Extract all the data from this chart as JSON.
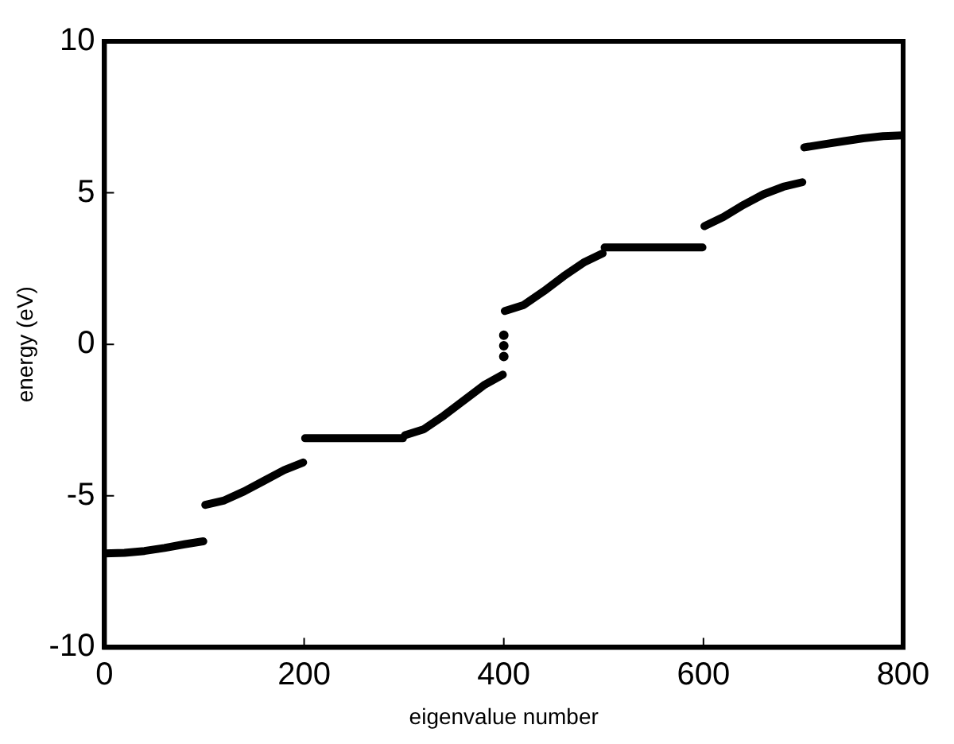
{
  "chart_data": {
    "type": "line",
    "xlabel": "eigenvalue number",
    "ylabel": "energy (eV)",
    "xlim": [
      0,
      800
    ],
    "xticks": [
      0,
      200,
      400,
      600,
      800
    ],
    "ylim": [
      -10,
      10
    ],
    "yticks": [
      -10,
      -5,
      0,
      5,
      10
    ],
    "grid": false,
    "legend": false,
    "series": [
      {
        "type": "line",
        "color": "#000000",
        "marker": "none",
        "x": [
          0,
          20,
          40,
          60,
          80,
          99,
          100,
          101,
          120,
          140,
          160,
          180,
          199,
          200,
          201,
          250,
          299,
          300,
          301,
          320,
          340,
          360,
          380,
          399,
          400,
          401,
          420,
          440,
          460,
          480,
          499,
          500,
          501,
          550,
          599,
          600,
          601,
          620,
          640,
          660,
          680,
          699,
          700,
          701,
          720,
          740,
          760,
          780,
          800
        ],
        "values": [
          -6.9,
          -6.88,
          -6.82,
          -6.72,
          -6.6,
          -6.5,
          null,
          -5.3,
          -5.15,
          -4.85,
          -4.5,
          -4.15,
          -3.9,
          null,
          -3.1,
          -3.1,
          -3.1,
          null,
          -3.0,
          -2.8,
          -2.35,
          -1.85,
          -1.35,
          -1.0,
          null,
          1.1,
          1.3,
          1.75,
          2.25,
          2.7,
          3.0,
          null,
          3.2,
          3.2,
          3.2,
          null,
          3.9,
          4.2,
          4.6,
          4.95,
          5.2,
          5.35,
          null,
          6.5,
          6.6,
          6.7,
          6.8,
          6.87,
          6.9
        ]
      },
      {
        "type": "scatter",
        "color": "#000000",
        "marker": "circle",
        "x": [
          400,
          400,
          400
        ],
        "values": [
          0.3,
          -0.05,
          -0.4
        ]
      }
    ]
  }
}
